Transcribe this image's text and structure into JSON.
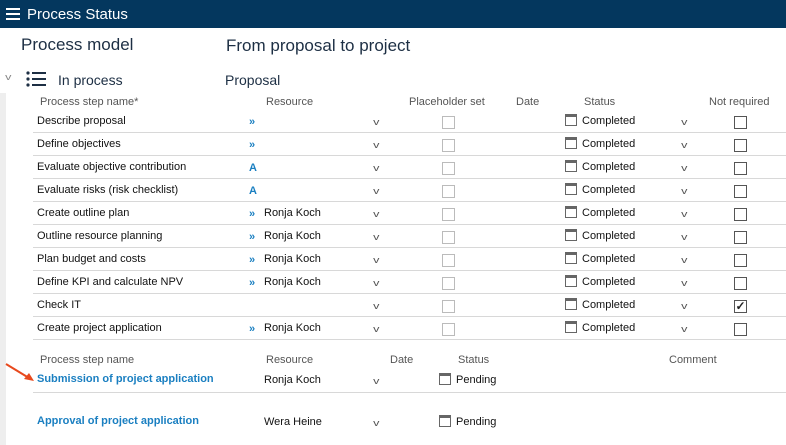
{
  "header": {
    "title": "Process Status",
    "menu_icon": "hamburger-icon"
  },
  "model_label": "Process model",
  "model_name": "From proposal to project",
  "status_group": "In process",
  "phase": "Proposal",
  "table1": {
    "headers": [
      "Process step name*",
      "Resource",
      "Placeholder set",
      "Date",
      "Status",
      "Not required"
    ],
    "rows": [
      {
        "name": "Describe proposal",
        "res_icon": "»",
        "resource": "",
        "status": "Completed",
        "not_required": false
      },
      {
        "name": "Define objectives",
        "res_icon": "»",
        "resource": "",
        "status": "Completed",
        "not_required": false
      },
      {
        "name": "Evaluate objective contribution",
        "res_icon": "A",
        "resource": "",
        "status": "Completed",
        "not_required": false
      },
      {
        "name": "Evaluate risks (risk checklist)",
        "res_icon": "A",
        "resource": "",
        "status": "Completed",
        "not_required": false
      },
      {
        "name": "Create outline plan",
        "res_icon": "»",
        "resource": "Ronja Koch",
        "status": "Completed",
        "not_required": false
      },
      {
        "name": "Outline resource planning",
        "res_icon": "»",
        "resource": "Ronja Koch",
        "status": "Completed",
        "not_required": false
      },
      {
        "name": "Plan budget and costs",
        "res_icon": "»",
        "resource": "Ronja Koch",
        "status": "Completed",
        "not_required": false
      },
      {
        "name": "Define KPI and calculate NPV",
        "res_icon": "»",
        "resource": "Ronja Koch",
        "status": "Completed",
        "not_required": false
      },
      {
        "name": "Check IT",
        "res_icon": "",
        "resource": "",
        "status": "Completed",
        "not_required": true
      },
      {
        "name": "Create project application",
        "res_icon": "»",
        "resource": "Ronja Koch",
        "status": "Completed",
        "not_required": false
      }
    ]
  },
  "table2": {
    "headers": [
      "Process step name",
      "Resource",
      "Date",
      "Status",
      "Comment"
    ],
    "rows": [
      {
        "name": "Submission of project application",
        "resource": "Ronja Koch",
        "status": "Pending"
      },
      {
        "name": "Approval of project application",
        "resource": "Wera Heine",
        "status": "Pending"
      }
    ]
  },
  "colors": {
    "header_bg": "#04375e",
    "link": "#1a7fc1",
    "arrow": "#e8491d"
  }
}
